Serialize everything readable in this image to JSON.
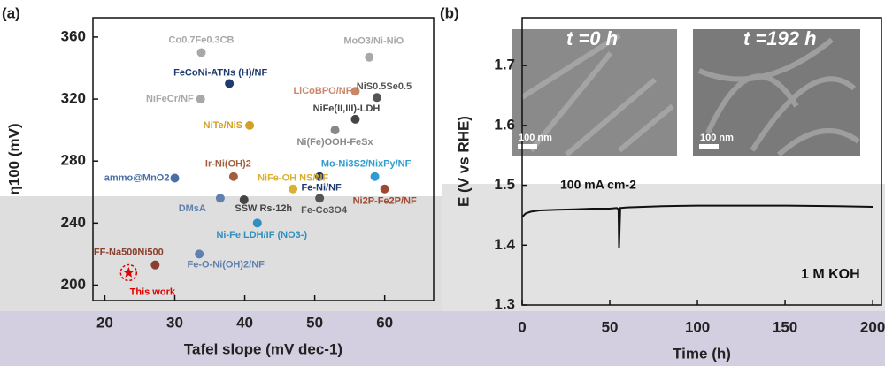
{
  "chart_data": [
    {
      "type": "scatter",
      "panel_label": "(a)",
      "x_label": "Tafel slope (mV dec-1)",
      "y_label": "η100 (mV)",
      "xlim": [
        18.3,
        67
      ],
      "ylim": [
        190,
        372.5
      ],
      "xticks": [
        20,
        30,
        40,
        50,
        60
      ],
      "yticks": [
        200,
        240,
        280,
        320,
        360
      ],
      "point_labels": [
        "Co0.7Fe0.3CB",
        "MoO3/Ni-NiO",
        "FeCoNi-ATNs (H)/NF",
        "NiFeCr/NF",
        "LiCoBPO/NF",
        "NiS0.5Se0.5",
        "NiFe(II,III)-LDH",
        "NiTe/NiS",
        "Ni(Fe)OOH-FeSx",
        "Ir-Ni(OH)2",
        "ammo@MnO2",
        "Mo-Ni3S2/NixPy/NF",
        "Fe-Ni/NF",
        "NiFe-OH NS/NF",
        "Ni2P-Fe2P/NF",
        "DMsA",
        "SSW Rs-12h",
        "Fe-Co3O4",
        "Ni-Fe LDH/IF (NO3-)",
        "Fe-O-Ni(OH)2/NF",
        "FF-Na500Ni500",
        "This work"
      ],
      "x": [
        33.8,
        57.8,
        37.8,
        33.7,
        55.8,
        58.9,
        55.8,
        40.7,
        52.9,
        38.4,
        30,
        58.6,
        50.7,
        46.9,
        60,
        36.5,
        39.9,
        50.7,
        41.8,
        33.5,
        27.2,
        23.4
      ],
      "values": [
        350,
        347,
        330,
        320,
        325,
        321,
        307,
        303,
        300,
        270,
        269,
        270,
        270,
        262,
        262,
        256,
        255,
        256,
        240,
        220,
        213,
        208
      ],
      "colors": [
        "#a8a8a8",
        "#a8a8a8",
        "#1f3a6e",
        "#a8a8a8",
        "#c9876a",
        "#555555",
        "#444444",
        "#d4a020",
        "#888888",
        "#a06040",
        "#4a6fa5",
        "#2f9ccf",
        "#1f3a6e",
        "#d9b030",
        "#a04830",
        "#6080b0",
        "#444444",
        "#555555",
        "#2f8fbf",
        "#6080b0",
        "#8a4030",
        "#e00000"
      ]
    },
    {
      "type": "line",
      "panel_label": "(b)",
      "x_label": "Time (h)",
      "y_label": "E (V vs RHE)",
      "annotations": [
        "t =0 h",
        "t =192 h",
        "100 nm",
        "100 nm",
        "100 mA cm-2",
        "1 M KOH"
      ],
      "xlim": [
        0,
        205
      ],
      "ylim": [
        1.3,
        1.78
      ],
      "xticks": [
        0,
        50,
        100,
        150,
        200
      ],
      "yticks": [
        1.3,
        1.4,
        1.5,
        1.6,
        1.7
      ],
      "x": [
        0,
        2,
        5,
        10,
        20,
        30,
        40,
        50,
        54,
        55,
        55.3,
        56,
        60,
        80,
        100,
        120,
        150,
        180,
        200
      ],
      "values": [
        1.447,
        1.453,
        1.456,
        1.458,
        1.459,
        1.46,
        1.461,
        1.461,
        1.462,
        1.46,
        1.395,
        1.462,
        1.463,
        1.465,
        1.466,
        1.466,
        1.466,
        1.465,
        1.464
      ],
      "color": "#111111"
    }
  ]
}
